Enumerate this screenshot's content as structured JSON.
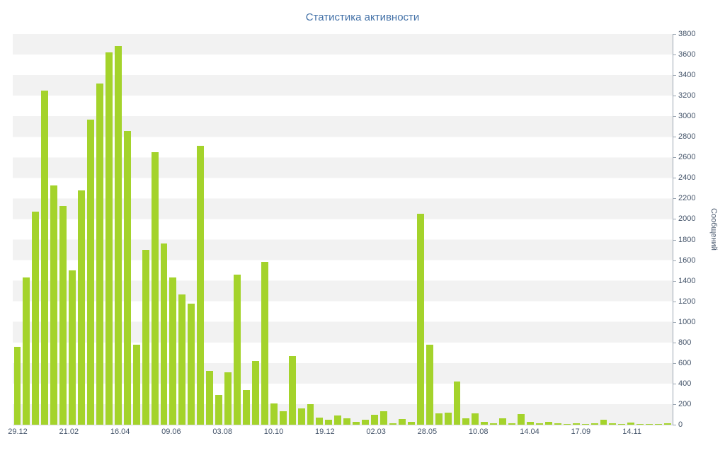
{
  "chart_data": {
    "type": "bar",
    "title": "Статистика активности",
    "xlabel": "",
    "ylabel": "Сообщений",
    "ylim": [
      0,
      3800
    ],
    "y_tick_step": 200,
    "grid": "horizontal-stripes",
    "legend": "none",
    "y_axis_position": "right",
    "x_tick_labels": [
      "29.12",
      "21.02",
      "16.04",
      "09.06",
      "03.08",
      "10.10",
      "19.12",
      "02.03",
      "28.05",
      "10.08",
      "14.04",
      "17.09",
      "14.11"
    ],
    "values": [
      760,
      1430,
      2070,
      3250,
      2330,
      2130,
      1500,
      2280,
      2970,
      3320,
      3620,
      3680,
      2860,
      780,
      1700,
      2650,
      1760,
      1430,
      1270,
      1180,
      2710,
      520,
      290,
      510,
      1460,
      340,
      620,
      1580,
      210,
      130,
      670,
      160,
      200,
      70,
      50,
      90,
      60,
      25,
      45,
      95,
      130,
      15,
      55,
      30,
      2050,
      780,
      110,
      120,
      420,
      60,
      110,
      25,
      15,
      60,
      15,
      100,
      30,
      15,
      25,
      15,
      8,
      12,
      8,
      15,
      50,
      12,
      8,
      20,
      8,
      5,
      10,
      15
    ]
  },
  "colors": {
    "bar": "#a4d32b",
    "title_text": "#4472a8",
    "axis_text": "#44546a",
    "axis_line": "#9aa5b1",
    "stripe": "#f2f2f2"
  }
}
